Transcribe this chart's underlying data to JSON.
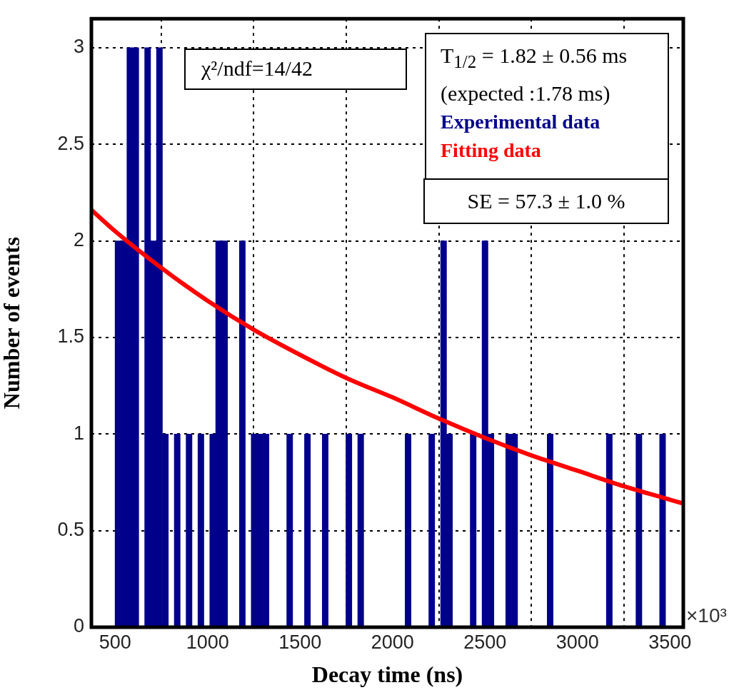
{
  "chart_data": {
    "type": "histogram",
    "xlabel": "Decay time (ns)",
    "ylabel": "Number of events",
    "annotations": [
      "χ²/ndf=14/42",
      "T$_{1/2}$ = 1.82 ± 0.56 ms",
      "(expected :1.78 ms)",
      "SE = 57.3 ± 1.0 %",
      "×10³"
    ],
    "xlim": [
      372,
      3572
    ],
    "xticks": [
      500,
      1000,
      1500,
      2000,
      2500,
      3000,
      3500
    ],
    "ylim": [
      0,
      3.15
    ],
    "yticks": [
      0,
      0.5,
      1,
      1.5,
      2,
      2.5,
      3
    ],
    "grid": true,
    "legend": "top right",
    "marker": "none",
    "series": [
      {
        "name": "Experimental data",
        "color": "#00008b",
        "bins": [
          372,
          404,
          436,
          468,
          500,
          532,
          564,
          596,
          628,
          660,
          692,
          724,
          756,
          788,
          820,
          852,
          884,
          916,
          948,
          980,
          1012,
          1044,
          1076,
          1108,
          1140,
          1172,
          1204,
          1236,
          1268,
          1300,
          1332,
          1364,
          1396,
          1428,
          1460,
          1492,
          1524,
          1556,
          1588,
          1620,
          1652,
          1684,
          1716,
          1748,
          1780,
          1812,
          1844,
          1876,
          1908,
          1940,
          1972,
          2004,
          2036,
          2068,
          2100,
          2132,
          2164,
          2196,
          2228,
          2260,
          2292,
          2324,
          2356,
          2388,
          2420,
          2452,
          2484,
          2516,
          2548,
          2580,
          2612,
          2644,
          2676,
          2708,
          2740,
          2772,
          2804,
          2836,
          2868,
          2900,
          2932,
          2964,
          2996,
          3028,
          3060,
          3092,
          3124,
          3156,
          3188,
          3220,
          3252,
          3284,
          3316,
          3348,
          3380,
          3412,
          3444,
          3476,
          3508,
          3540,
          3572
        ],
        "values": [
          0,
          0,
          0,
          0,
          2,
          2,
          3,
          3,
          0,
          3,
          2,
          3,
          1,
          0,
          1,
          0,
          1,
          0,
          1,
          0,
          1,
          2,
          2,
          0,
          0,
          2,
          0,
          1,
          1,
          1,
          0,
          0,
          0,
          1,
          0,
          0,
          1,
          0,
          0,
          1,
          0,
          0,
          0,
          1,
          0,
          1,
          0,
          0,
          0,
          0,
          0,
          0,
          0,
          1,
          0,
          0,
          0,
          1,
          0,
          2,
          1,
          0,
          0,
          0,
          1,
          0,
          2,
          1,
          0,
          0,
          1,
          1,
          0,
          0,
          0,
          0,
          0,
          1,
          0,
          0,
          0,
          0,
          0,
          0,
          0,
          0,
          0,
          1,
          0,
          0,
          0,
          0,
          1,
          0,
          0,
          0,
          1,
          0,
          0,
          0
        ]
      },
      {
        "type": "line",
        "name": "Fitting data",
        "color": "#ff0000",
        "x": [
          372,
          500,
          750,
          1000,
          1250,
          1500,
          1750,
          2000,
          2250,
          2500,
          2750,
          3000,
          3250,
          3500,
          3572
        ],
        "values": [
          2.16,
          2.05,
          1.86,
          1.69,
          1.54,
          1.41,
          1.29,
          1.19,
          1.08,
          0.98,
          0.89,
          0.81,
          0.73,
          0.66,
          0.64
        ]
      }
    ]
  }
}
